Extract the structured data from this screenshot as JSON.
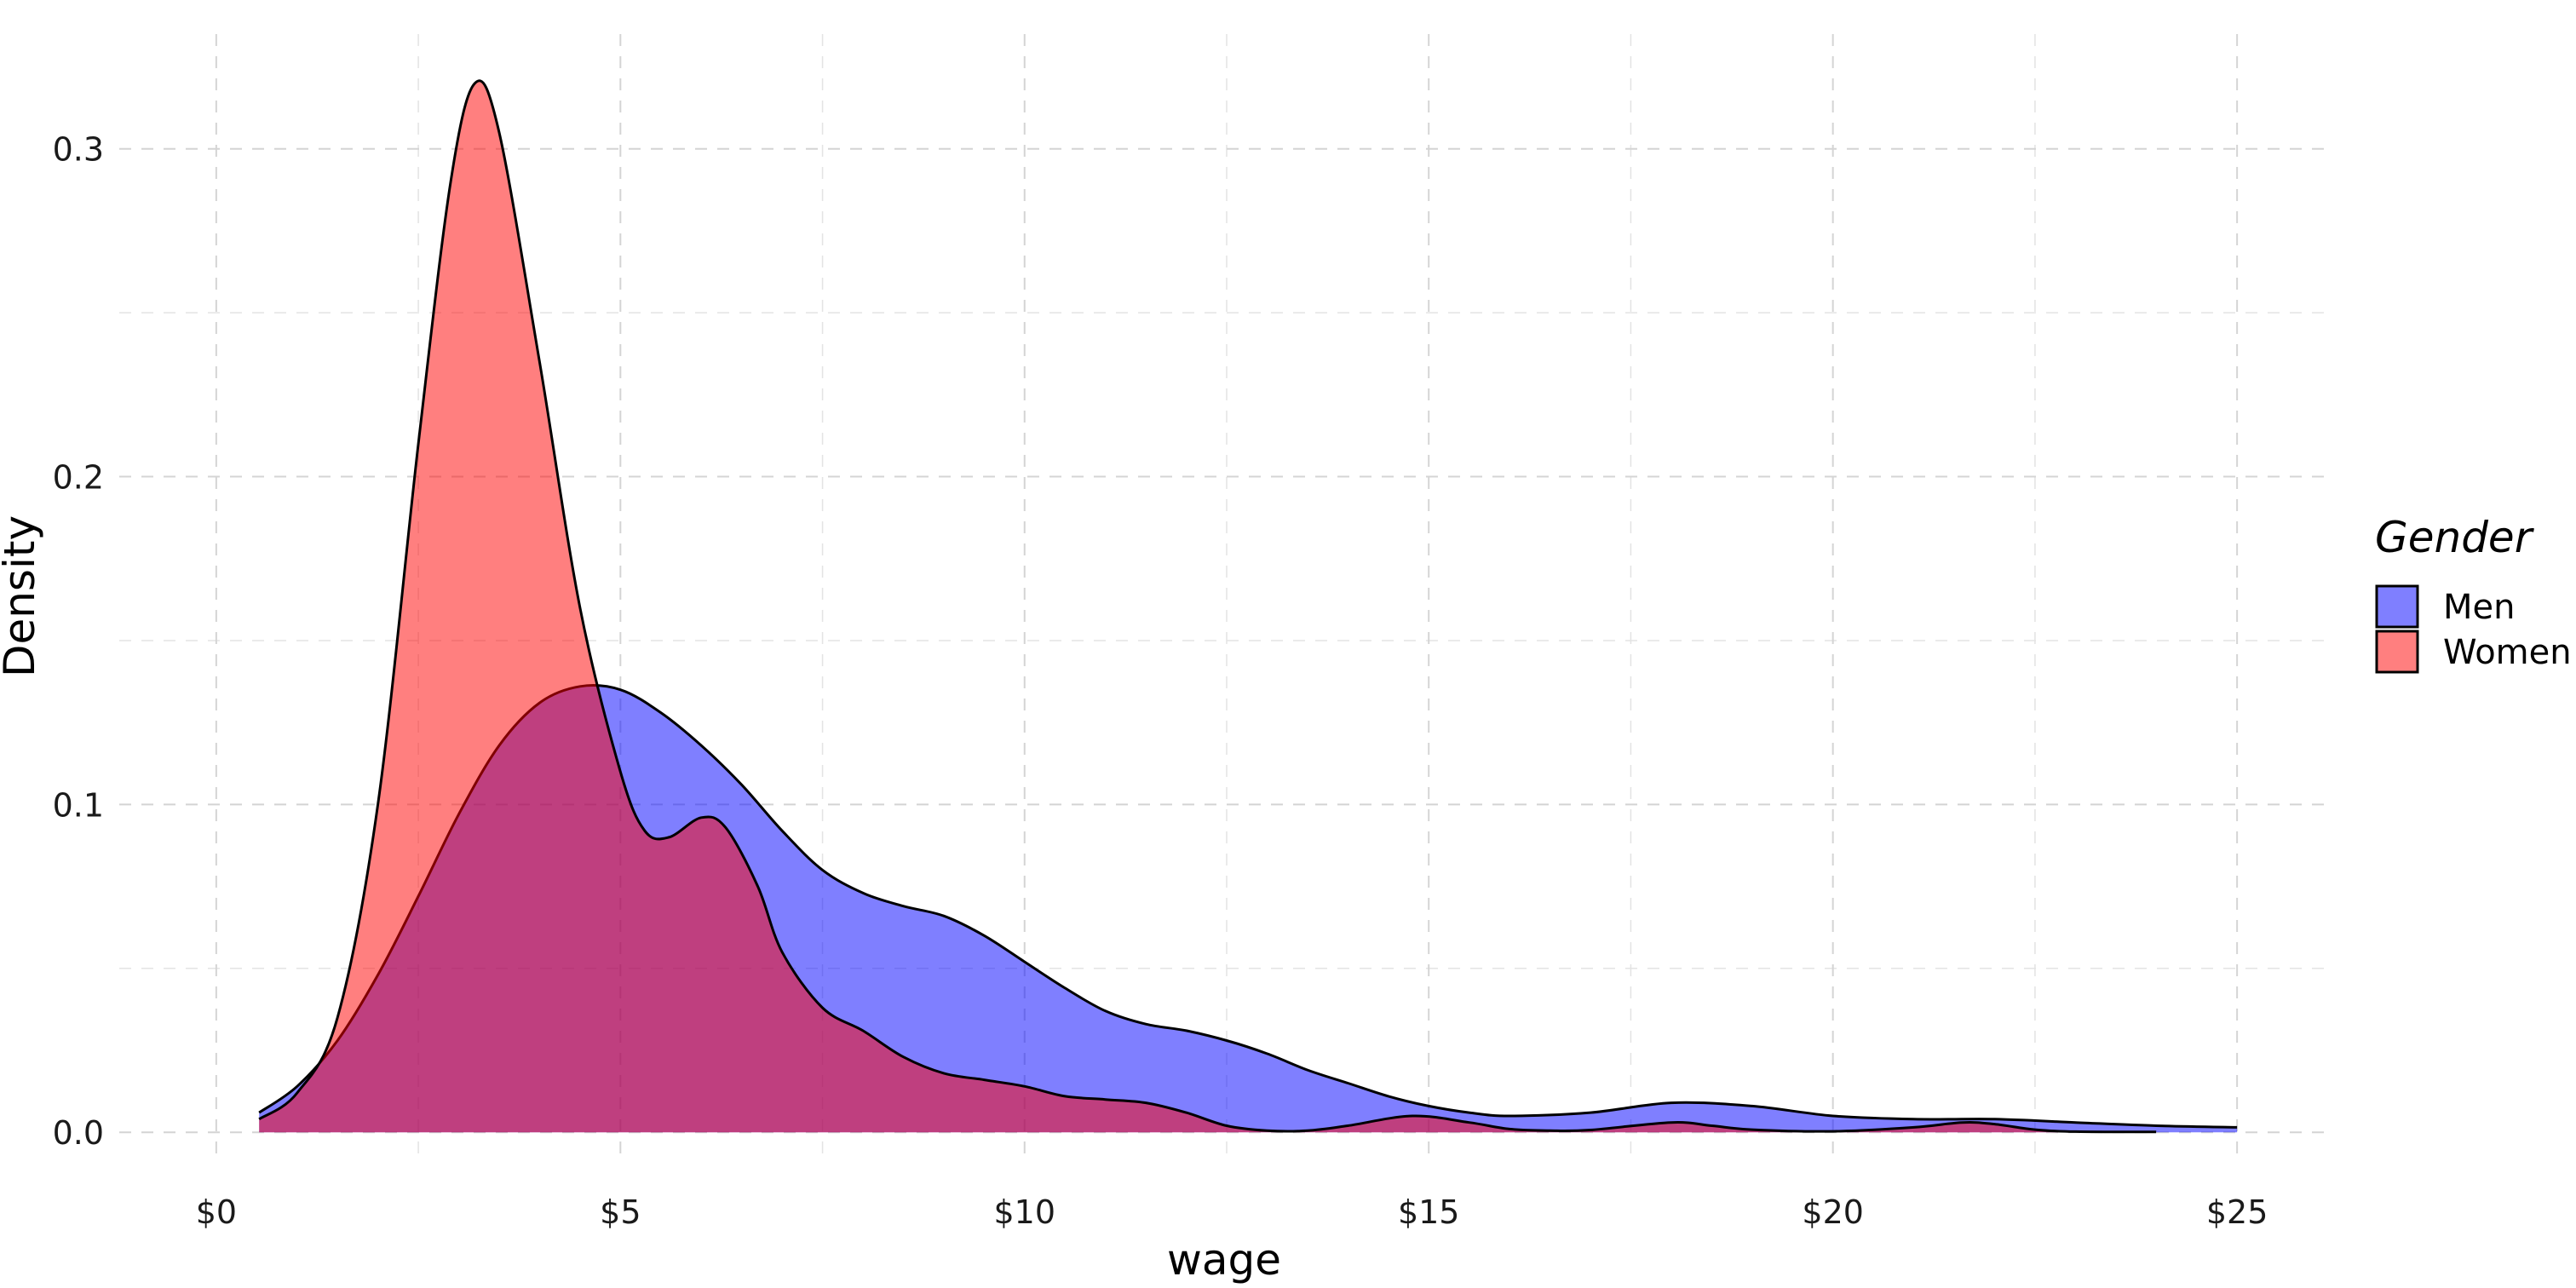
{
  "chart_data": {
    "type": "area",
    "title": "",
    "xlabel": "wage",
    "ylabel": "Density",
    "xlim": [
      -1.2,
      26.2
    ],
    "ylim": [
      -0.008,
      0.335
    ],
    "x_ticks": [
      0,
      5,
      10,
      15,
      20,
      25
    ],
    "x_tick_labels": [
      "$0",
      "$5",
      "$10",
      "$15",
      "$20",
      "$25"
    ],
    "y_ticks": [
      0,
      0.1,
      0.2,
      0.3
    ],
    "y_tick_labels": [
      "0.0",
      "0.1",
      "0.2",
      "0.3"
    ],
    "grid": true,
    "legend": {
      "title": "Gender",
      "position": "right"
    },
    "series": [
      {
        "name": "Men",
        "color": "#0000ff",
        "opacity": 0.5,
        "points": [
          [
            0.53,
            0.006
          ],
          [
            1.0,
            0.014
          ],
          [
            1.5,
            0.028
          ],
          [
            2.0,
            0.048
          ],
          [
            2.5,
            0.072
          ],
          [
            3.0,
            0.097
          ],
          [
            3.5,
            0.118
          ],
          [
            4.0,
            0.131
          ],
          [
            4.5,
            0.136
          ],
          [
            5.0,
            0.135
          ],
          [
            5.5,
            0.128
          ],
          [
            6.0,
            0.118
          ],
          [
            6.5,
            0.106
          ],
          [
            7.0,
            0.092
          ],
          [
            7.5,
            0.08
          ],
          [
            8.0,
            0.073
          ],
          [
            8.5,
            0.069
          ],
          [
            9.0,
            0.066
          ],
          [
            9.5,
            0.06
          ],
          [
            10.0,
            0.052
          ],
          [
            10.5,
            0.044
          ],
          [
            11.0,
            0.037
          ],
          [
            11.5,
            0.033
          ],
          [
            12.0,
            0.031
          ],
          [
            12.5,
            0.028
          ],
          [
            13.0,
            0.024
          ],
          [
            13.5,
            0.019
          ],
          [
            14.0,
            0.015
          ],
          [
            14.5,
            0.011
          ],
          [
            15.0,
            0.008
          ],
          [
            15.5,
            0.006
          ],
          [
            16.0,
            0.005
          ],
          [
            17.0,
            0.006
          ],
          [
            18.0,
            0.009
          ],
          [
            19.0,
            0.008
          ],
          [
            20.0,
            0.005
          ],
          [
            21.0,
            0.004
          ],
          [
            22.0,
            0.004
          ],
          [
            23.0,
            0.003
          ],
          [
            24.0,
            0.002
          ],
          [
            25.0,
            0.0015
          ]
        ]
      },
      {
        "name": "Women",
        "color": "#ff0000",
        "opacity": 0.5,
        "points": [
          [
            0.53,
            0.004
          ],
          [
            1.0,
            0.012
          ],
          [
            1.5,
            0.035
          ],
          [
            2.0,
            0.1
          ],
          [
            2.5,
            0.21
          ],
          [
            2.9,
            0.29
          ],
          [
            3.2,
            0.32
          ],
          [
            3.5,
            0.305
          ],
          [
            4.0,
            0.235
          ],
          [
            4.5,
            0.16
          ],
          [
            5.0,
            0.11
          ],
          [
            5.3,
            0.092
          ],
          [
            5.6,
            0.09
          ],
          [
            6.0,
            0.096
          ],
          [
            6.3,
            0.093
          ],
          [
            6.7,
            0.075
          ],
          [
            7.0,
            0.055
          ],
          [
            7.5,
            0.038
          ],
          [
            8.0,
            0.031
          ],
          [
            8.5,
            0.023
          ],
          [
            9.0,
            0.018
          ],
          [
            9.5,
            0.016
          ],
          [
            10.0,
            0.014
          ],
          [
            10.5,
            0.011
          ],
          [
            11.0,
            0.01
          ],
          [
            11.5,
            0.009
          ],
          [
            12.0,
            0.006
          ],
          [
            12.5,
            0.002
          ],
          [
            13.0,
            0.0005
          ],
          [
            13.5,
            0.0005
          ],
          [
            14.0,
            0.002
          ],
          [
            14.8,
            0.005
          ],
          [
            15.5,
            0.003
          ],
          [
            16.0,
            0.001
          ],
          [
            16.5,
            0.0005
          ],
          [
            17.0,
            0.0007
          ],
          [
            18.0,
            0.003
          ],
          [
            18.5,
            0.002
          ],
          [
            19.0,
            0.0008
          ],
          [
            20.0,
            0.0003
          ],
          [
            21.0,
            0.0015
          ],
          [
            21.6,
            0.003
          ],
          [
            22.0,
            0.0025
          ],
          [
            22.5,
            0.0008
          ],
          [
            23.0,
            0.0002
          ],
          [
            24.0,
            0.0001
          ]
        ]
      }
    ]
  }
}
